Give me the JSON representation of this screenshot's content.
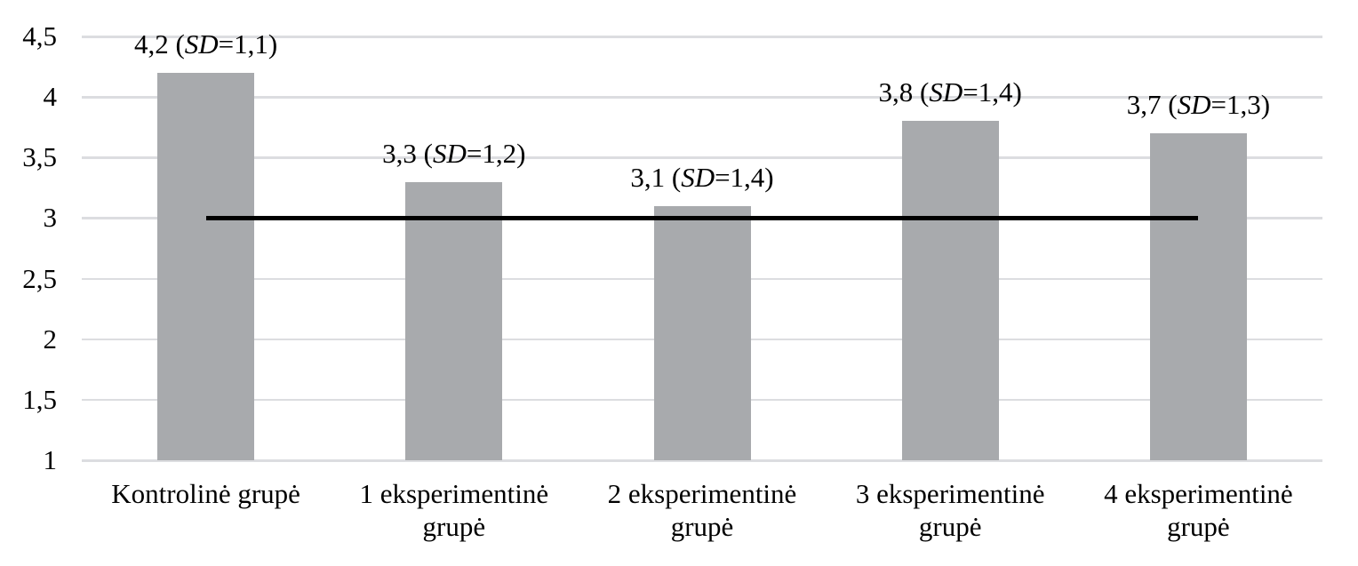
{
  "chart_data": {
    "type": "bar",
    "title": "",
    "xlabel": "",
    "ylabel": "",
    "categories": [
      "Kontrolinė grupė",
      "1 eksperimentinė grupė",
      "2 eksperimentinė grupė",
      "3 eksperimentinė grupė",
      "4 eksperimentinė grupė"
    ],
    "category_lines": [
      [
        "Kontrolinė grupė"
      ],
      [
        "1 eksperimentinė",
        "grupė"
      ],
      [
        "2 eksperimentinė",
        "grupė"
      ],
      [
        "3 eksperimentinė",
        "grupė"
      ],
      [
        "4 eksperimentinė",
        "grupė"
      ]
    ],
    "values": [
      4.2,
      3.3,
      3.1,
      3.8,
      3.7
    ],
    "sd_values": [
      1.1,
      1.2,
      1.4,
      1.4,
      1.3
    ],
    "data_labels": [
      {
        "pre": "4,2 (",
        "italic": "SD",
        "post": "=1,1)"
      },
      {
        "pre": "3,3 (",
        "italic": "SD",
        "post": "=1,2)"
      },
      {
        "pre": "3,1 (",
        "italic": "SD",
        "post": "=1,4)"
      },
      {
        "pre": "3,8 (",
        "italic": "SD",
        "post": "=1,4)"
      },
      {
        "pre": "3,7 (",
        "italic": "SD",
        "post": "=1,3)"
      }
    ],
    "ylim": [
      1,
      4.5
    ],
    "ytick_step": 0.5,
    "ytick_labels": [
      "1",
      "1,5",
      "2",
      "2,5",
      "3",
      "3,5",
      "4",
      "4,5"
    ],
    "reference_line": {
      "value": 3
    },
    "grid": true,
    "legend": "none",
    "colors": {
      "bar": "#a8aaad",
      "gridline": "#dcdde0",
      "reference_line": "#000000",
      "text": "#000000",
      "background": "#ffffff"
    }
  }
}
